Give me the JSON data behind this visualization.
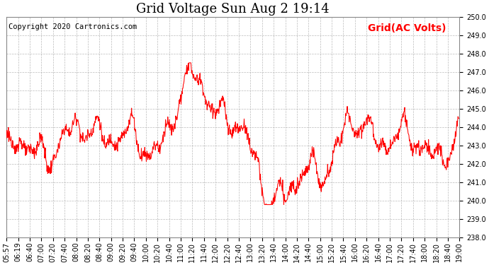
{
  "title": "Grid Voltage Sun Aug 2 19:14",
  "copyright": "Copyright 2020 Cartronics.com",
  "legend_label": "Grid(AC Volts)",
  "legend_color": "#ff0000",
  "line_color": "#ff0000",
  "background_color": "#ffffff",
  "grid_color": "#aaaaaa",
  "ylim": [
    238.0,
    250.0
  ],
  "yticks": [
    238.0,
    239.0,
    240.0,
    241.0,
    242.0,
    243.0,
    244.0,
    245.0,
    246.0,
    247.0,
    248.0,
    249.0,
    250.0
  ],
  "xtick_labels": [
    "05:57",
    "06:19",
    "06:40",
    "07:00",
    "07:20",
    "07:40",
    "08:00",
    "08:20",
    "08:40",
    "09:00",
    "09:20",
    "09:40",
    "10:00",
    "10:20",
    "10:40",
    "11:00",
    "11:20",
    "11:40",
    "12:00",
    "12:20",
    "12:40",
    "13:00",
    "13:20",
    "13:40",
    "14:00",
    "14:20",
    "14:40",
    "15:00",
    "15:20",
    "15:40",
    "16:00",
    "16:20",
    "16:40",
    "17:00",
    "17:20",
    "17:40",
    "18:00",
    "18:20",
    "18:40",
    "19:00"
  ],
  "title_fontsize": 13,
  "copyright_fontsize": 7.5,
  "legend_fontsize": 10,
  "tick_fontsize": 7,
  "line_width": 0.75
}
